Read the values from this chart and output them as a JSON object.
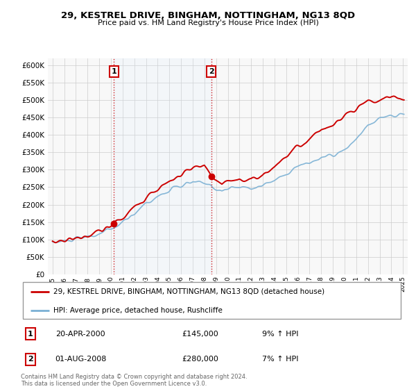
{
  "title": "29, KESTREL DRIVE, BINGHAM, NOTTINGHAM, NG13 8QD",
  "subtitle": "Price paid vs. HM Land Registry's House Price Index (HPI)",
  "legend_line1": "29, KESTREL DRIVE, BINGHAM, NOTTINGHAM, NG13 8QD (detached house)",
  "legend_line2": "HPI: Average price, detached house, Rushcliffe",
  "transaction1_date": "20-APR-2000",
  "transaction1_price": "£145,000",
  "transaction1_hpi": "9% ↑ HPI",
  "transaction2_date": "01-AUG-2008",
  "transaction2_price": "£280,000",
  "transaction2_hpi": "7% ↑ HPI",
  "footer": "Contains HM Land Registry data © Crown copyright and database right 2024.\nThis data is licensed under the Open Government Licence v3.0.",
  "price_color": "#cc0000",
  "hpi_color": "#7ab0d4",
  "vline_color": "#cc0000",
  "shade_color": "#ddeeff",
  "ylim_min": 0,
  "ylim_max": 620000,
  "yticks": [
    0,
    50000,
    100000,
    150000,
    200000,
    250000,
    300000,
    350000,
    400000,
    450000,
    500000,
    550000,
    600000
  ],
  "transaction1_year": 2000.25,
  "transaction2_year": 2008.58,
  "background_color": "#ffffff",
  "grid_color": "#cccccc"
}
